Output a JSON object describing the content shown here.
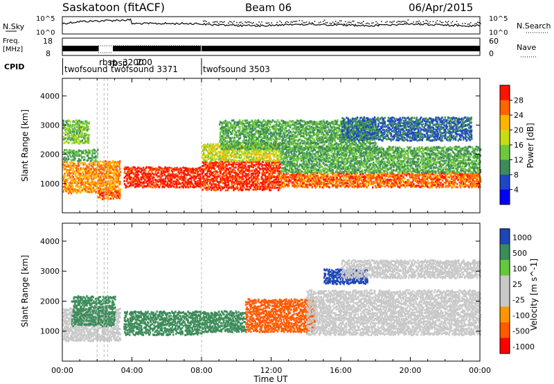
{
  "header": {
    "station": "Saskatoon (fitACF)",
    "beam": "Beam 06",
    "date": "06/Apr/2015"
  },
  "noise_panel": {
    "left_label": "N.Sky",
    "right_label": "N.Search",
    "left_ticks": [
      "10^5",
      "10^0"
    ],
    "right_ticks": [
      "10^5",
      "10^0"
    ],
    "right_legend_style": "dotted"
  },
  "freq_panel": {
    "left_label_top": "Freq.",
    "left_label_bottom": "[MHz]",
    "left_ticks": [
      "18",
      "8"
    ],
    "right_label": "Nave",
    "right_ticks": [
      "60",
      "0"
    ],
    "right_legend_style": "dotted"
  },
  "cpid_panel": {
    "label": "CPID",
    "segments": [
      {
        "start_hour": 0.0,
        "text": "twofsound"
      },
      {
        "start_hour": 1.55,
        "text": "rbsp"
      },
      {
        "start_hour": 1.95,
        "text": "rbsp"
      },
      {
        "start_hour": 2.35,
        "text": "3200"
      },
      {
        "start_hour": 2.55,
        "text": "200"
      },
      {
        "start_hour": 1.95,
        "text": "twofsound 3371"
      },
      {
        "start_hour": 8.0,
        "text": "twofsound 3503"
      }
    ]
  },
  "colors": {
    "power_scale": [
      "#0000ff",
      "#1e46c8",
      "#3c8c5a",
      "#6ec83c",
      "#c8dc14",
      "#ffb400",
      "#ff6400",
      "#ff1400"
    ],
    "velocity_scale": [
      "#ff0000",
      "#ff5a00",
      "#ff9600",
      "#c8c8c8",
      "#c8c8c8",
      "#64c83c",
      "#3c8c5a",
      "#1e46b4"
    ]
  },
  "chart_data": [
    {
      "type": "heatmap",
      "name": "power",
      "ylabel": "Slant Range [km]",
      "ylim": [
        0,
        4600
      ],
      "yticks": [
        1000,
        2000,
        3000,
        4000
      ],
      "xlim": [
        0,
        24
      ],
      "colorbar_label": "Power [dB]",
      "colorbar_ticks": [
        4,
        8,
        12,
        16,
        20,
        24,
        28
      ],
      "colorbar_range": [
        0,
        32
      ],
      "scatter_bands": [
        {
          "x0": 0,
          "x1": 3.3,
          "y0": 700,
          "y1": 1800,
          "value": 24
        },
        {
          "x0": 0,
          "x1": 2.0,
          "y0": 1800,
          "y1": 2200,
          "value": 12
        },
        {
          "x0": 0,
          "x1": 1.5,
          "y0": 2400,
          "y1": 3200,
          "value": 14
        },
        {
          "x0": 3.5,
          "x1": 8.0,
          "y0": 900,
          "y1": 1600,
          "value": 30
        },
        {
          "x0": 8.0,
          "x1": 12.5,
          "y0": 800,
          "y1": 1800,
          "value": 29
        },
        {
          "x0": 8.0,
          "x1": 12.5,
          "y0": 1800,
          "y1": 2400,
          "value": 18
        },
        {
          "x0": 9.0,
          "x1": 18.0,
          "y0": 2200,
          "y1": 3200,
          "value": 12
        },
        {
          "x0": 12.5,
          "x1": 24.0,
          "y0": 900,
          "y1": 1400,
          "value": 26
        },
        {
          "x0": 12.5,
          "x1": 24.0,
          "y0": 1400,
          "y1": 2300,
          "value": 12
        },
        {
          "x0": 16.0,
          "x1": 23.5,
          "y0": 2500,
          "y1": 3300,
          "value": 8
        },
        {
          "x0": 2.0,
          "x1": 3.3,
          "y0": 500,
          "y1": 800,
          "value": 26
        }
      ]
    },
    {
      "type": "heatmap",
      "name": "velocity",
      "ylabel": "Slant Range [km]",
      "xlabel": "Time UT",
      "ylim": [
        0,
        4600
      ],
      "yticks": [
        1000,
        2000,
        3000,
        4000
      ],
      "xlim": [
        0,
        24
      ],
      "xticklabels": [
        "00:00",
        "04:00",
        "08:00",
        "12:00",
        "16:00",
        "20:00",
        "00:00"
      ],
      "colorbar_label": "Velocity [m s^-1]",
      "colorbar_ticks": [
        "1000",
        "500",
        "100",
        "25",
        "-25",
        "-100",
        "-500",
        "-1000"
      ],
      "scatter_bands": [
        {
          "x0": 0,
          "x1": 3.3,
          "y0": 700,
          "y1": 1800,
          "value": 0
        },
        {
          "x0": 0.5,
          "x1": 3.0,
          "y0": 1200,
          "y1": 2200,
          "value": 150
        },
        {
          "x0": 3.5,
          "x1": 8.0,
          "y0": 900,
          "y1": 1700,
          "value": 150
        },
        {
          "x0": 8.0,
          "x1": 10.5,
          "y0": 1000,
          "y1": 1700,
          "value": 120
        },
        {
          "x0": 10.5,
          "x1": 14.5,
          "y0": 1000,
          "y1": 2100,
          "value": -200
        },
        {
          "x0": 14.0,
          "x1": 24.0,
          "y0": 900,
          "y1": 2400,
          "value": 0
        },
        {
          "x0": 15.0,
          "x1": 17.5,
          "y0": 2600,
          "y1": 3100,
          "value": 600
        },
        {
          "x0": 16.0,
          "x1": 24.0,
          "y0": 2800,
          "y1": 3400,
          "value": 0
        }
      ]
    }
  ]
}
